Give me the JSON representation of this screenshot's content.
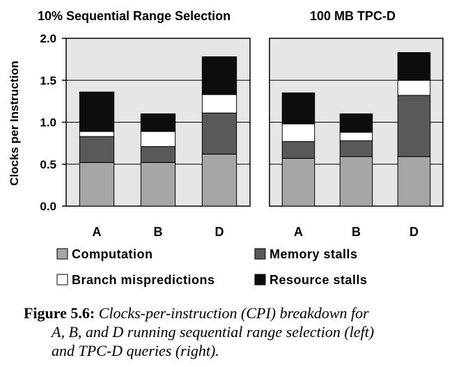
{
  "chart_data": [
    {
      "type": "bar",
      "stacked": true,
      "title": "10% Sequential Range Selection",
      "ylabel": "Clocks per Instruction",
      "xlabel": "",
      "ylim": [
        0,
        2.0
      ],
      "yticks": [
        "0.0",
        "0.5",
        "1.0",
        "1.5",
        "2.0"
      ],
      "grid": true,
      "categories": [
        "A",
        "B",
        "D"
      ],
      "series": [
        {
          "name": "Computation",
          "values": [
            0.52,
            0.52,
            0.62
          ]
        },
        {
          "name": "Memory stalls",
          "values": [
            0.31,
            0.19,
            0.49
          ]
        },
        {
          "name": "Branch mispredictions",
          "values": [
            0.06,
            0.18,
            0.22
          ]
        },
        {
          "name": "Resource stalls",
          "values": [
            0.47,
            0.21,
            0.45
          ]
        }
      ]
    },
    {
      "type": "bar",
      "stacked": true,
      "title": "100 MB TPC-D",
      "ylabel": "",
      "xlabel": "",
      "ylim": [
        0,
        2.0
      ],
      "grid": true,
      "categories": [
        "A",
        "B",
        "D"
      ],
      "series": [
        {
          "name": "Computation",
          "values": [
            0.57,
            0.59,
            0.59
          ]
        },
        {
          "name": "Memory stalls",
          "values": [
            0.2,
            0.19,
            0.73
          ]
        },
        {
          "name": "Branch mispredictions",
          "values": [
            0.21,
            0.1,
            0.18
          ]
        },
        {
          "name": "Resource stalls",
          "values": [
            0.37,
            0.22,
            0.33
          ]
        }
      ]
    }
  ],
  "legend": [
    {
      "label": "Computation",
      "color": "#a6a6a6"
    },
    {
      "label": "Memory stalls",
      "color": "#595959"
    },
    {
      "label": "Branch mispredictions",
      "color": "#ffffff"
    },
    {
      "label": "Resource stalls",
      "color": "#0d0d0d"
    }
  ],
  "colors": {
    "plot_background": "#e6e6e6",
    "gridline": "#000000"
  },
  "caption": {
    "label": "Figure 5.6:",
    "line1": "Clocks-per-instruction (CPI) breakdown for",
    "line2": "A, B, and D running sequential range selection (left)",
    "line3": "and TPC-D queries (right)."
  }
}
